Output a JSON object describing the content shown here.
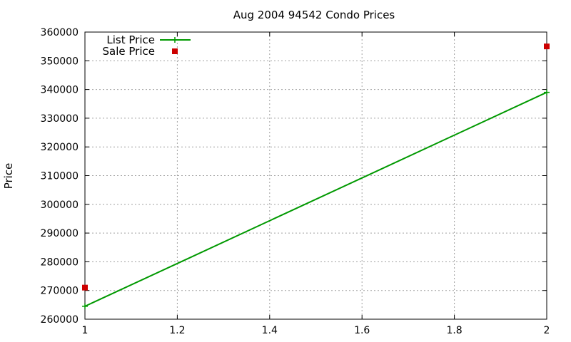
{
  "chart_data": {
    "type": "line",
    "title": "Aug 2004 94542 Condo Prices",
    "xlabel": "",
    "ylabel": "Price",
    "xlim": [
      1,
      2
    ],
    "ylim": [
      260000,
      360000
    ],
    "xticks": [
      1,
      1.2,
      1.4,
      1.6,
      1.8,
      2
    ],
    "xtick_labels": [
      "1",
      "1.2",
      "1.4",
      "1.6",
      "1.8",
      "2"
    ],
    "yticks": [
      260000,
      270000,
      280000,
      290000,
      300000,
      310000,
      320000,
      330000,
      340000,
      350000,
      360000
    ],
    "ytick_labels": [
      "260000",
      "270000",
      "280000",
      "290000",
      "300000",
      "310000",
      "320000",
      "330000",
      "340000",
      "350000",
      "360000"
    ],
    "grid": true,
    "legend_position": "top-left",
    "series": [
      {
        "name": "List Price",
        "kind": "line",
        "color": "#009900",
        "x": [
          1,
          2
        ],
        "y": [
          264500,
          339000
        ]
      },
      {
        "name": "Sale Price",
        "kind": "scatter",
        "color": "#cc0000",
        "x": [
          1,
          2
        ],
        "y": [
          271000,
          355000
        ]
      }
    ]
  }
}
